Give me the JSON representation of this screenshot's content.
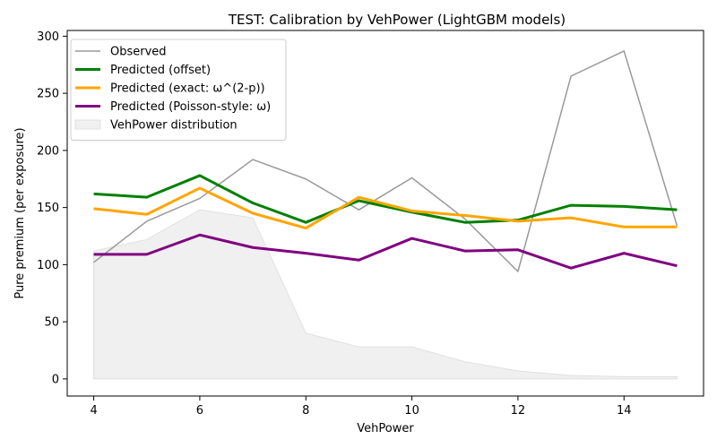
{
  "chart_data": {
    "type": "line",
    "title": "TEST: Calibration by VehPower (LightGBM models)",
    "xlabel": "VehPower",
    "ylabel": "Pure premium (per exposure)",
    "xlim": [
      3.5,
      15.5
    ],
    "ylim": [
      -15,
      305
    ],
    "xticks": [
      4,
      6,
      8,
      10,
      12,
      14
    ],
    "yticks": [
      0,
      50,
      100,
      150,
      200,
      250,
      300
    ],
    "grid": false,
    "legend_position": "upper-left",
    "x": [
      4,
      5,
      6,
      7,
      8,
      9,
      10,
      11,
      12,
      13,
      14,
      15
    ],
    "series": [
      {
        "name": "Observed",
        "color": "#999999",
        "width": 1.5,
        "values": [
          102,
          138,
          158,
          192,
          175,
          148,
          176,
          140,
          94,
          265,
          287,
          134
        ]
      },
      {
        "name": "Predicted (offset)",
        "color": "#008000",
        "width": 3,
        "values": [
          162,
          159,
          178,
          154,
          137,
          156,
          146,
          137,
          139,
          152,
          151,
          148
        ]
      },
      {
        "name": "Predicted (exact: ω^(2-p))",
        "color": "#ffa500",
        "width": 3,
        "values": [
          149,
          144,
          167,
          145,
          132,
          159,
          147,
          143,
          138,
          141,
          133,
          133
        ]
      },
      {
        "name": "Predicted (Poisson-style: ω)",
        "color": "#800080",
        "width": 3,
        "values": [
          109,
          109,
          126,
          115,
          110,
          104,
          123,
          112,
          113,
          97,
          110,
          99
        ]
      }
    ],
    "distribution": {
      "name": "VehPower distribution",
      "color": "#f0f0f0",
      "values": [
        112,
        122,
        148,
        141,
        40,
        28,
        28,
        15,
        7,
        3,
        2,
        2
      ]
    }
  }
}
